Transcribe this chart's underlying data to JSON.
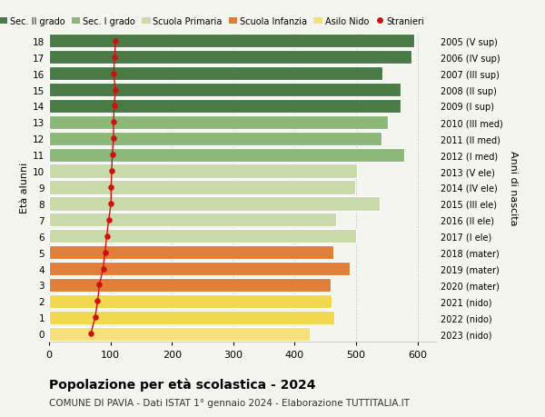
{
  "ages": [
    0,
    1,
    2,
    3,
    4,
    5,
    6,
    7,
    8,
    9,
    10,
    11,
    12,
    13,
    14,
    15,
    16,
    17,
    18
  ],
  "bar_values": [
    425,
    465,
    460,
    458,
    490,
    463,
    500,
    468,
    538,
    498,
    502,
    578,
    542,
    552,
    572,
    573,
    543,
    590,
    595
  ],
  "stranieri": [
    68,
    75,
    79,
    82,
    88,
    91,
    94,
    97,
    101,
    101,
    102,
    103,
    105,
    105,
    106,
    108,
    105,
    107,
    108
  ],
  "right_labels": [
    "2023 (nido)",
    "2022 (nido)",
    "2021 (nido)",
    "2020 (mater)",
    "2019 (mater)",
    "2018 (mater)",
    "2017 (I ele)",
    "2016 (II ele)",
    "2015 (III ele)",
    "2014 (IV ele)",
    "2013 (V ele)",
    "2012 (I med)",
    "2011 (II med)",
    "2010 (III med)",
    "2009 (I sup)",
    "2008 (II sup)",
    "2007 (III sup)",
    "2006 (IV sup)",
    "2005 (V sup)"
  ],
  "bar_colors": [
    "#f5e07a",
    "#f2d84e",
    "#f2d84e",
    "#e07e3a",
    "#e07e3a",
    "#e07e3a",
    "#c8dba8",
    "#c8dba8",
    "#c8dba8",
    "#c8dba8",
    "#c8dba8",
    "#8cb87a",
    "#8cb87a",
    "#8cb87a",
    "#4a7a45",
    "#4a7a45",
    "#4a7a45",
    "#4a7a45",
    "#4a7a45"
  ],
  "legend_labels": [
    "Sec. II grado",
    "Sec. I grado",
    "Scuola Primaria",
    "Scuola Infanzia",
    "Asilo Nido",
    "Stranieri"
  ],
  "legend_colors": [
    "#4a7a45",
    "#8cb87a",
    "#c8dba8",
    "#e07e3a",
    "#f5e07a",
    "#cc1111"
  ],
  "ylabel": "Età alunni",
  "right_ylabel": "Anni di nascita",
  "title": "Popolazione per età scolastica - 2024",
  "subtitle": "COMUNE DI PAVIA - Dati ISTAT 1° gennaio 2024 - Elaborazione TUTTITALIA.IT",
  "xticks": [
    0,
    100,
    200,
    300,
    400,
    500,
    600
  ],
  "xlim": [
    0,
    630
  ],
  "bg_color": "#f5f5ef",
  "bar_height": 0.85,
  "stranieri_color": "#cc1111"
}
